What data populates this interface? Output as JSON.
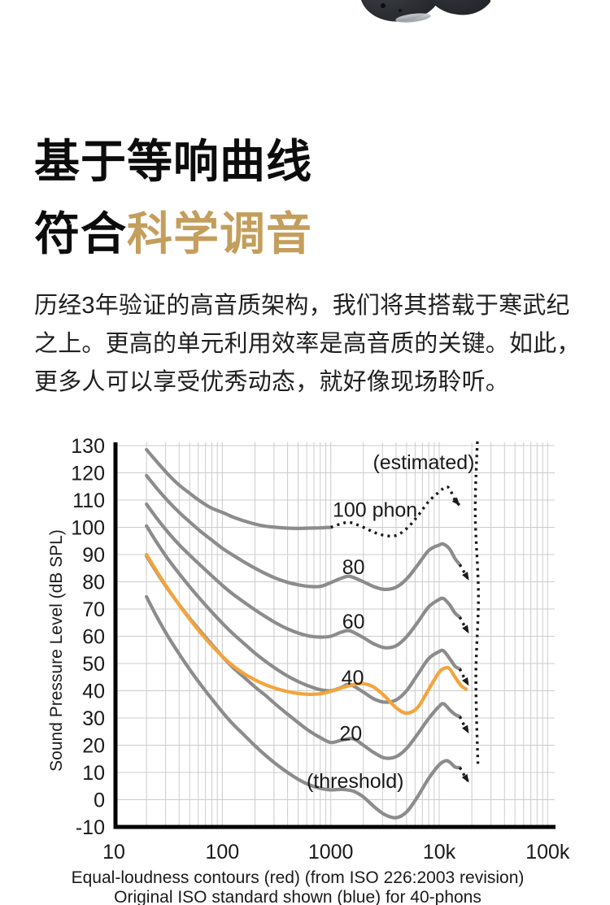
{
  "page": {
    "heading": {
      "line1": "基于等响曲线",
      "line2_black": "符合",
      "line2_gold": "科学调音",
      "gold_color": "#C49E5C"
    },
    "paragraph": "历经3年验证的高音质架构，我们将其搭载于寒武纪之上。更高的单元利用效率是高音质的关键。如此，更多人可以享受优秀动态，就好像现场聆听。"
  },
  "chart_data": {
    "type": "line",
    "title": "Equal-loudness contours (ISO 226:2003)",
    "x_axis": {
      "scale": "log",
      "unit": "Hz",
      "tick_labels": [
        "10",
        "100",
        "1000",
        "10k",
        "100k"
      ],
      "tick_values": [
        10,
        100,
        1000,
        10000,
        100000
      ],
      "range": [
        10,
        115000
      ],
      "grid": true
    },
    "y_axis": {
      "label": "Sound Pressure Level (dB SPL)",
      "tick_values": [
        130,
        120,
        110,
        100,
        90,
        80,
        70,
        60,
        50,
        40,
        30,
        20,
        10,
        0,
        -10
      ],
      "range": [
        -10,
        131
      ],
      "grid": true
    },
    "colors": {
      "contour": "#8C8C8C",
      "highlight": "#F4A43C",
      "estimated": "#1A1A1A",
      "grid": "#CCCCCC",
      "axis": "#000000"
    },
    "legend": "none",
    "series": [
      {
        "name": "100-phon",
        "style": "solid",
        "color": "contour",
        "arrow": false,
        "points": [
          [
            20,
            128.5
          ],
          [
            25,
            124
          ],
          [
            31.5,
            119.5
          ],
          [
            40,
            115.5
          ],
          [
            50,
            112.5
          ],
          [
            63,
            109.5
          ],
          [
            80,
            107
          ],
          [
            100,
            105.5
          ],
          [
            125,
            103.8
          ],
          [
            160,
            102.3
          ],
          [
            200,
            101.2
          ],
          [
            250,
            100.4
          ],
          [
            315,
            100
          ],
          [
            400,
            99.7
          ],
          [
            500,
            99.6
          ],
          [
            630,
            99.7
          ],
          [
            800,
            99.8
          ],
          [
            1000,
            100
          ]
        ]
      },
      {
        "name": "100-phon-estimated",
        "style": "dotted",
        "color": "estimated",
        "arrow": true,
        "points": [
          [
            1000,
            100
          ],
          [
            1250,
            101.3
          ],
          [
            1500,
            101.8
          ],
          [
            2000,
            100
          ],
          [
            2500,
            98.2
          ],
          [
            3150,
            97
          ],
          [
            4000,
            97
          ],
          [
            5000,
            99.5
          ],
          [
            6300,
            104
          ],
          [
            8000,
            109.5
          ],
          [
            10000,
            113
          ],
          [
            11500,
            114.8
          ],
          [
            12500,
            114
          ],
          [
            14000,
            110
          ],
          [
            15500,
            108
          ]
        ]
      },
      {
        "name": "80-phon",
        "style": "solid",
        "color": "contour",
        "arrow": false,
        "points": [
          [
            20,
            119
          ],
          [
            25,
            114.2
          ],
          [
            31.5,
            109.7
          ],
          [
            40,
            105.5
          ],
          [
            50,
            102
          ],
          [
            63,
            98.5
          ],
          [
            80,
            95.3
          ],
          [
            100,
            92.3
          ],
          [
            125,
            89.8
          ],
          [
            160,
            87.2
          ],
          [
            200,
            85
          ],
          [
            250,
            83
          ],
          [
            315,
            81.2
          ],
          [
            400,
            79.8
          ],
          [
            500,
            78.9
          ],
          [
            630,
            78.3
          ],
          [
            800,
            78.3
          ],
          [
            1000,
            79.7
          ],
          [
            1250,
            81.3
          ],
          [
            1500,
            82
          ],
          [
            2000,
            80
          ],
          [
            2500,
            78.2
          ],
          [
            3150,
            77.2
          ],
          [
            4000,
            78
          ],
          [
            5000,
            81
          ],
          [
            6300,
            86
          ],
          [
            8000,
            91.5
          ],
          [
            10000,
            93.5
          ],
          [
            11000,
            93.8
          ],
          [
            12500,
            92
          ],
          [
            14000,
            88.5
          ],
          [
            15500,
            86.3
          ]
        ]
      },
      {
        "name": "80-phon-tail",
        "style": "dotted",
        "color": "estimated",
        "arrow": true,
        "points": [
          [
            15500,
            86.3
          ],
          [
            17000,
            83.5
          ],
          [
            18800,
            80.5
          ]
        ]
      },
      {
        "name": "60-phon",
        "style": "solid",
        "color": "contour",
        "arrow": false,
        "points": [
          [
            20,
            108.5
          ],
          [
            25,
            103.2
          ],
          [
            31.5,
            98.2
          ],
          [
            40,
            93.6
          ],
          [
            50,
            89.8
          ],
          [
            63,
            86
          ],
          [
            80,
            82.2
          ],
          [
            100,
            78.7
          ],
          [
            125,
            75.5
          ],
          [
            160,
            72.4
          ],
          [
            200,
            69.7
          ],
          [
            250,
            67.2
          ],
          [
            315,
            64.8
          ],
          [
            400,
            62.7
          ],
          [
            500,
            61.2
          ],
          [
            630,
            60.1
          ],
          [
            800,
            59.7
          ],
          [
            1000,
            60
          ],
          [
            1250,
            61.5
          ],
          [
            1500,
            62
          ],
          [
            2000,
            59.5
          ],
          [
            2500,
            57.2
          ],
          [
            3150,
            55.8
          ],
          [
            4000,
            56.5
          ],
          [
            5000,
            59.8
          ],
          [
            6300,
            65
          ],
          [
            8000,
            70.8
          ],
          [
            10000,
            73.5
          ],
          [
            11000,
            73.8
          ],
          [
            12500,
            71.5
          ],
          [
            14000,
            68.5
          ],
          [
            15500,
            67
          ]
        ]
      },
      {
        "name": "60-phon-tail",
        "style": "dotted",
        "color": "estimated",
        "arrow": true,
        "points": [
          [
            15500,
            67
          ],
          [
            17000,
            64
          ],
          [
            18800,
            61
          ]
        ]
      },
      {
        "name": "40-phon",
        "style": "solid",
        "color": "contour",
        "arrow": false,
        "points": [
          [
            20,
            100.5
          ],
          [
            25,
            94.3
          ],
          [
            31.5,
            88.4
          ],
          [
            40,
            83
          ],
          [
            50,
            78.2
          ],
          [
            63,
            73.5
          ],
          [
            80,
            68.9
          ],
          [
            100,
            64.8
          ],
          [
            125,
            61
          ],
          [
            160,
            57.2
          ],
          [
            200,
            53.8
          ],
          [
            250,
            50.8
          ],
          [
            315,
            48
          ],
          [
            400,
            45.4
          ],
          [
            500,
            43.4
          ],
          [
            630,
            41.7
          ],
          [
            800,
            40.4
          ],
          [
            1000,
            40
          ],
          [
            1250,
            41.2
          ],
          [
            1500,
            42.3
          ],
          [
            2000,
            39.5
          ],
          [
            2500,
            37
          ],
          [
            3150,
            35.8
          ],
          [
            4000,
            36.6
          ],
          [
            5000,
            40
          ],
          [
            6300,
            45.8
          ],
          [
            8000,
            51.8
          ],
          [
            10000,
            54.4
          ],
          [
            11000,
            54.6
          ],
          [
            12500,
            51.8
          ],
          [
            14000,
            49
          ],
          [
            15500,
            48
          ]
        ]
      },
      {
        "name": "40-phon-tail",
        "style": "dotted",
        "color": "estimated",
        "arrow": true,
        "points": [
          [
            15500,
            48
          ],
          [
            17000,
            44.8
          ],
          [
            18800,
            41.8
          ]
        ]
      },
      {
        "name": "20-phon",
        "style": "solid",
        "color": "contour",
        "arrow": false,
        "points": [
          [
            20,
            89.5
          ],
          [
            25,
            83.3
          ],
          [
            31.5,
            77.3
          ],
          [
            40,
            71.6
          ],
          [
            50,
            66.6
          ],
          [
            63,
            61.8
          ],
          [
            80,
            57
          ],
          [
            100,
            52.6
          ],
          [
            125,
            48.6
          ],
          [
            160,
            44.8
          ],
          [
            200,
            41.4
          ],
          [
            250,
            38.3
          ],
          [
            315,
            34.8
          ],
          [
            400,
            31.4
          ],
          [
            500,
            28.3
          ],
          [
            630,
            25.3
          ],
          [
            800,
            22.8
          ],
          [
            1000,
            21
          ],
          [
            1250,
            21.8
          ],
          [
            1600,
            22.4
          ],
          [
            2000,
            20
          ],
          [
            2500,
            17.3
          ],
          [
            3150,
            15.3
          ],
          [
            4000,
            15.8
          ],
          [
            5000,
            18.8
          ],
          [
            6300,
            24
          ],
          [
            8000,
            29.8
          ],
          [
            10000,
            34.3
          ],
          [
            11000,
            35.2
          ],
          [
            12500,
            33
          ],
          [
            14000,
            31.3
          ],
          [
            15500,
            30.5
          ]
        ]
      },
      {
        "name": "20-phon-tail",
        "style": "dotted",
        "color": "estimated",
        "arrow": true,
        "points": [
          [
            15500,
            30.5
          ],
          [
            17000,
            27.3
          ],
          [
            18800,
            24.3
          ]
        ]
      },
      {
        "name": "threshold",
        "style": "solid",
        "color": "contour",
        "arrow": false,
        "points": [
          [
            20,
            74.5
          ],
          [
            25,
            67
          ],
          [
            31.5,
            60
          ],
          [
            40,
            53.5
          ],
          [
            50,
            47.8
          ],
          [
            63,
            42.3
          ],
          [
            80,
            37
          ],
          [
            100,
            32.2
          ],
          [
            125,
            27.8
          ],
          [
            160,
            23.6
          ],
          [
            200,
            19.8
          ],
          [
            250,
            16.3
          ],
          [
            315,
            13
          ],
          [
            400,
            10
          ],
          [
            500,
            7.5
          ],
          [
            630,
            5.5
          ],
          [
            800,
            4.2
          ],
          [
            1000,
            3.6
          ],
          [
            1250,
            3.8
          ],
          [
            1600,
            3.2
          ],
          [
            2000,
            1
          ],
          [
            2500,
            -2.5
          ],
          [
            3150,
            -5.5
          ],
          [
            4000,
            -6.6
          ],
          [
            5000,
            -4.5
          ],
          [
            6300,
            1
          ],
          [
            8000,
            7.8
          ],
          [
            10000,
            12.8
          ],
          [
            11500,
            14.3
          ],
          [
            12500,
            13.8
          ],
          [
            14000,
            12
          ],
          [
            15500,
            11.8
          ]
        ]
      },
      {
        "name": "threshold-tail",
        "style": "dotted",
        "color": "estimated",
        "arrow": true,
        "points": [
          [
            15500,
            11.8
          ],
          [
            17000,
            9
          ],
          [
            18800,
            6.3
          ]
        ]
      },
      {
        "name": "original-iso-40-phon",
        "style": "solid",
        "color": "highlight",
        "arrow": false,
        "points": [
          [
            20,
            90
          ],
          [
            25,
            83.7
          ],
          [
            31.5,
            77.5
          ],
          [
            40,
            71.5
          ],
          [
            50,
            66.3
          ],
          [
            63,
            61.3
          ],
          [
            80,
            56.6
          ],
          [
            100,
            52.6
          ],
          [
            125,
            49.2
          ],
          [
            160,
            46.2
          ],
          [
            200,
            44
          ],
          [
            250,
            42.2
          ],
          [
            315,
            40.8
          ],
          [
            400,
            39.7
          ],
          [
            500,
            39
          ],
          [
            630,
            38.7
          ],
          [
            800,
            38.9
          ],
          [
            1000,
            39.8
          ],
          [
            1250,
            41
          ],
          [
            1600,
            42.2
          ],
          [
            2000,
            42.6
          ],
          [
            2500,
            41.3
          ],
          [
            3150,
            38
          ],
          [
            4000,
            33.8
          ],
          [
            5000,
            31.8
          ],
          [
            6300,
            33.8
          ],
          [
            8000,
            40.5
          ],
          [
            10000,
            46.8
          ],
          [
            11500,
            48.4
          ],
          [
            12500,
            48
          ],
          [
            14000,
            45
          ],
          [
            16000,
            41.8
          ],
          [
            17700,
            40.6
          ]
        ]
      },
      {
        "name": "estimated-limit-20k",
        "style": "dotted",
        "color": "estimated",
        "arrow": false,
        "points": [
          [
            22500,
            131.5
          ],
          [
            21500,
            105
          ],
          [
            23000,
            75
          ],
          [
            21800,
            45
          ],
          [
            22800,
            12
          ]
        ]
      }
    ],
    "annotations": [
      {
        "label": "(estimated)",
        "f": 7200,
        "v": 124
      },
      {
        "label": "100 phon",
        "f": 2560,
        "v": 106.5
      },
      {
        "label": "80",
        "f": 1620,
        "v": 85.5
      },
      {
        "label": "60",
        "f": 1620,
        "v": 65.5
      },
      {
        "label": "40",
        "f": 1590,
        "v": 45
      },
      {
        "label": "20",
        "f": 1530,
        "v": 24.5
      },
      {
        "label": "(threshold)",
        "f": 1680,
        "v": 7
      }
    ],
    "captions": [
      "Equal-loudness contours (red) (from ISO 226:2003 revision)",
      "Original ISO standard shown (blue) for 40-phons"
    ]
  }
}
